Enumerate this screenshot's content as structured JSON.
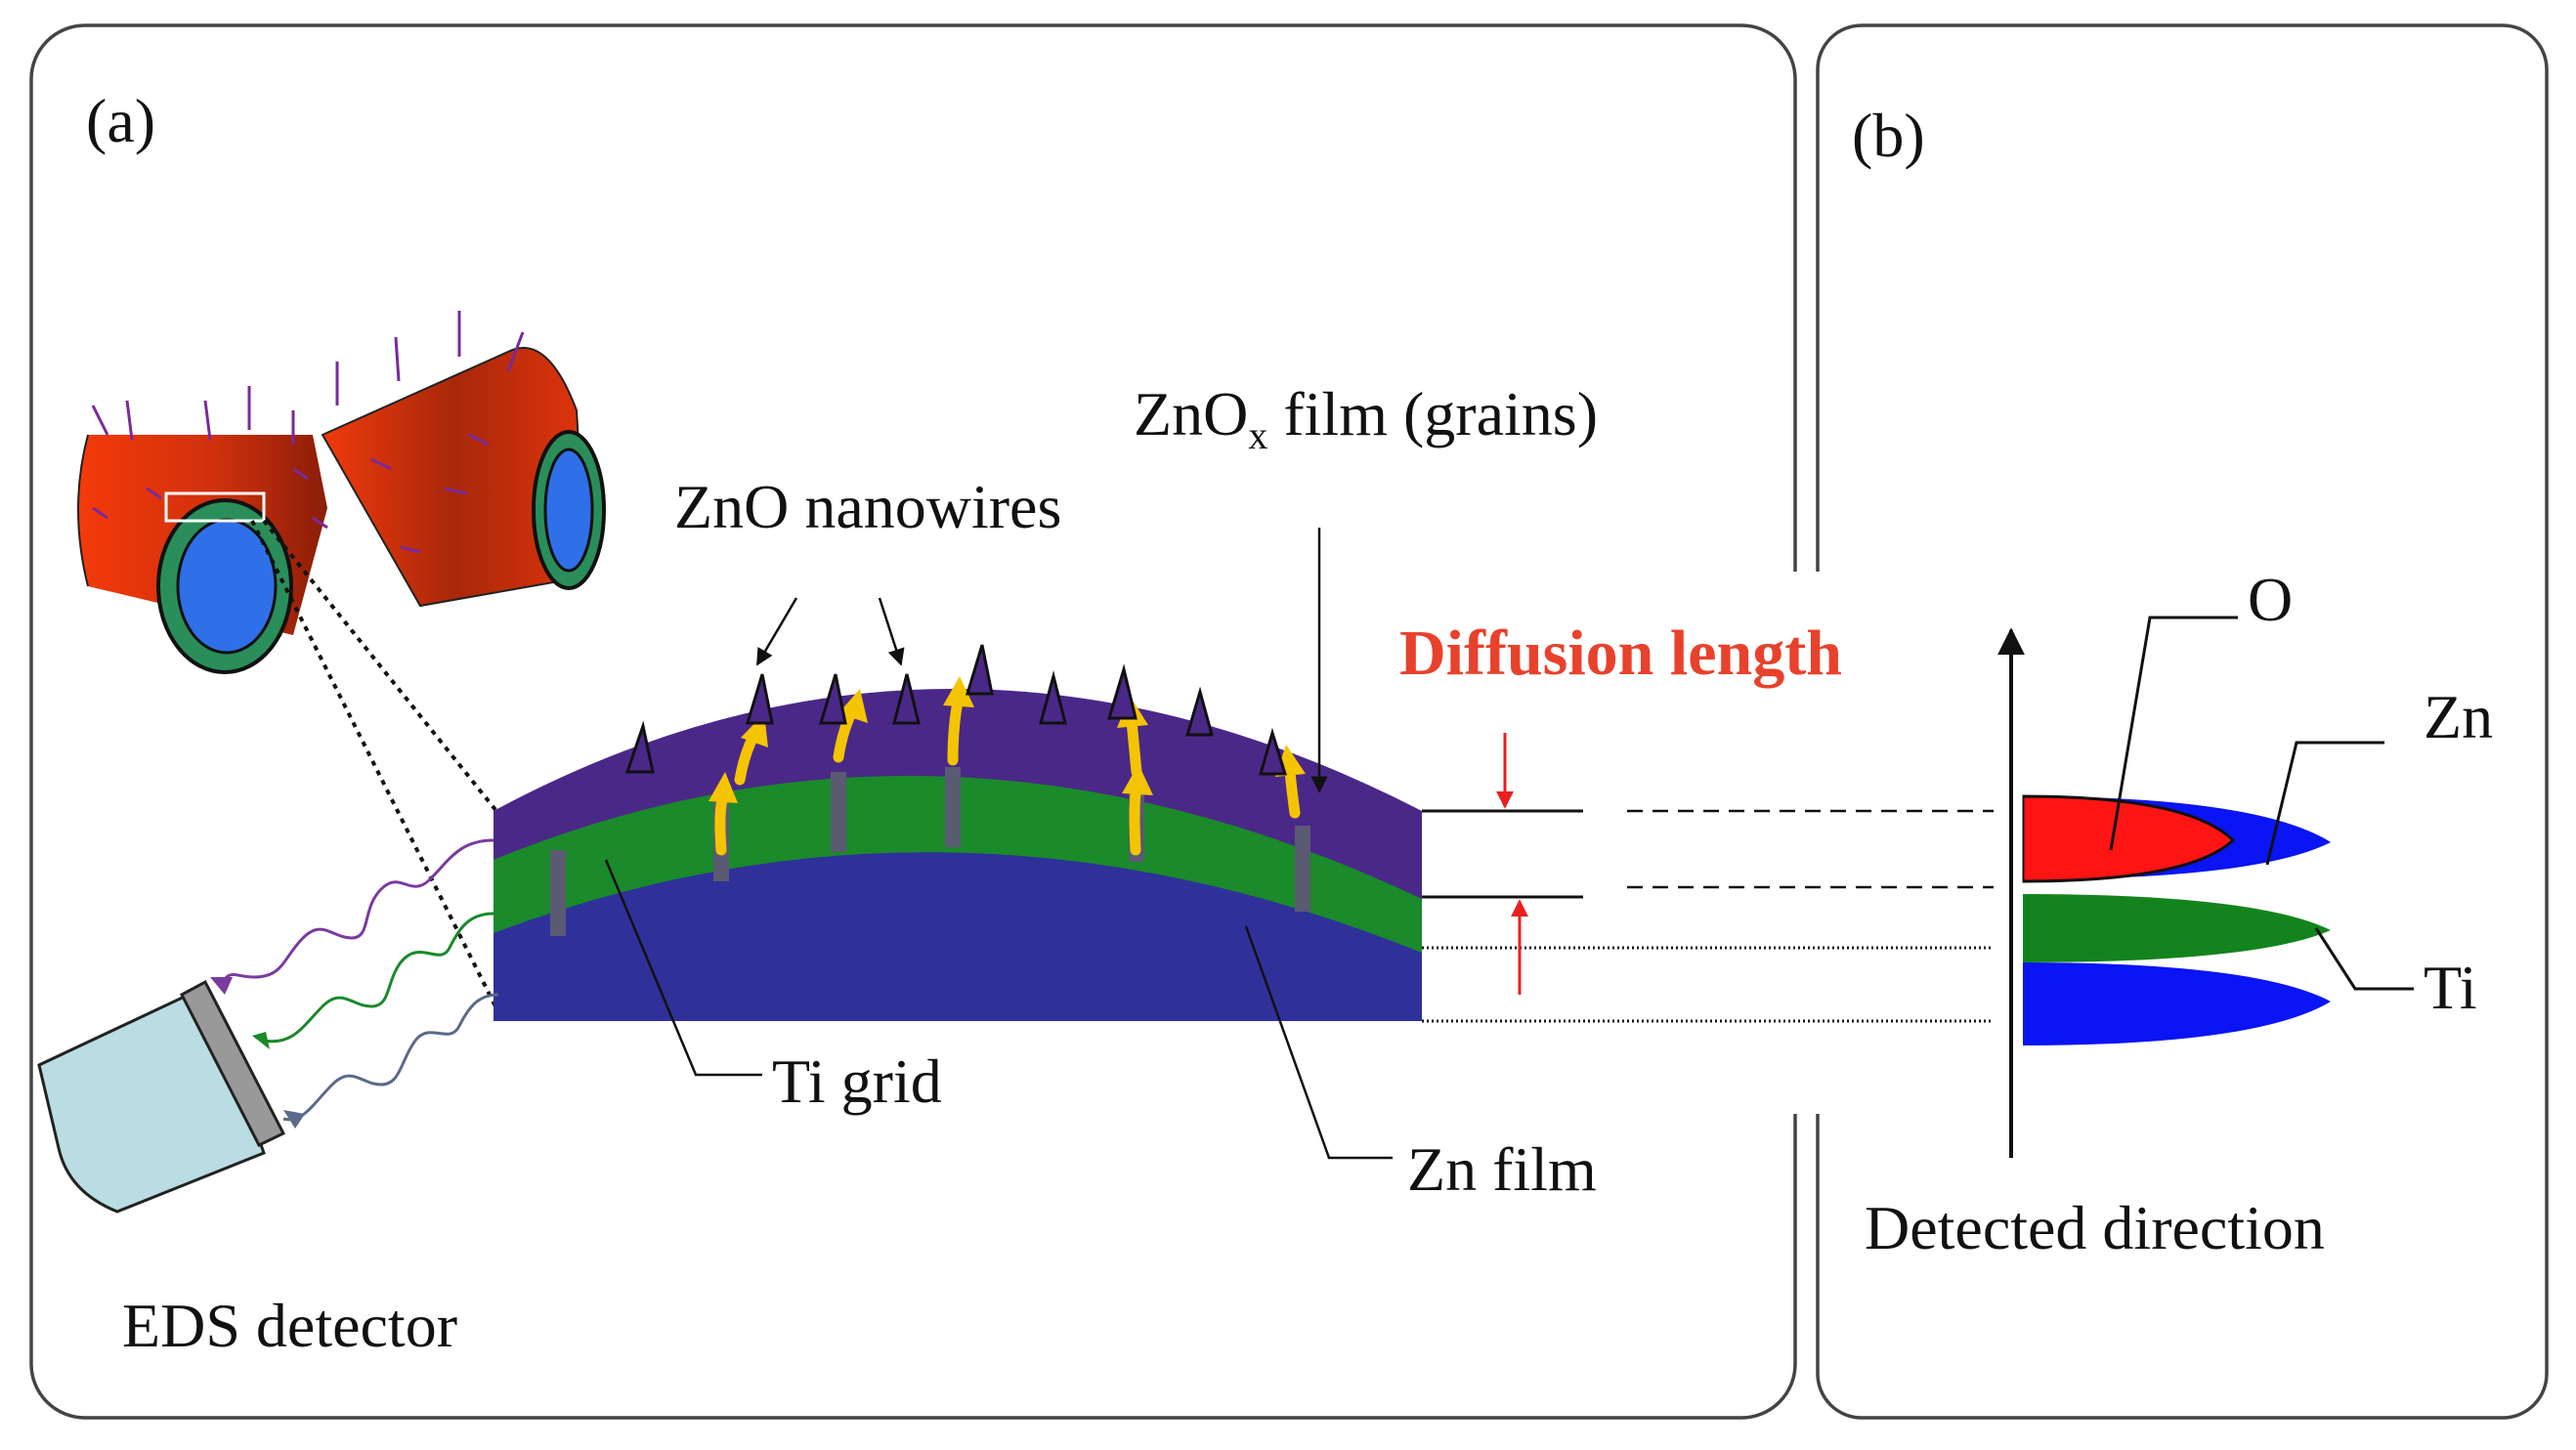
{
  "panel_a": {
    "label": "(a)",
    "labels": {
      "nanowires": "ZnO nanowires",
      "znox_main": "ZnO",
      "znox_sub": "x",
      "znox_rest": " film (grains)",
      "diffusion": "Diffusion length",
      "ti_grid": "Ti grid",
      "zn_film": "Zn film",
      "eds": "EDS detector"
    }
  },
  "panel_b": {
    "label": "(b)",
    "labels": {
      "o": "O",
      "zn": "Zn",
      "ti": "Ti",
      "detected": "Detected direction"
    }
  },
  "colors": {
    "tube": "#f03a0c",
    "core": "#2f6fe8",
    "ring": "#2a8e5a",
    "oxide": "#4a2888",
    "ti_layer": "#1a8a2a",
    "zn_layer": "#30309a",
    "arrow": "#f5c400",
    "profile_o": "#ff1414",
    "profile_zn": "#0a14f5",
    "profile_ti": "#13841d",
    "detector": "#b9dde2",
    "diffusion_text": "#e8412c"
  }
}
